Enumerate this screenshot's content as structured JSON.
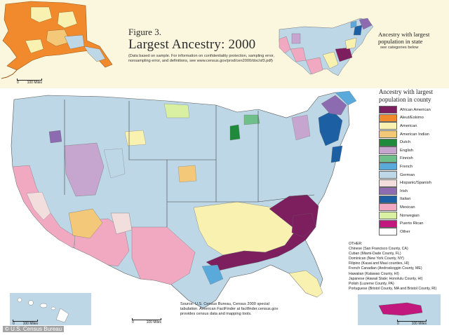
{
  "figure": {
    "label": "Figure 3.",
    "title": "Largest Ancestry: 2000",
    "note": "(Data based on sample. For information on confidentiality protection, sampling error, nonsampling error, and definitions, see www.census.gov/prod/cen2000/doc/sf3.pdf)"
  },
  "state_legend": {
    "title": "Ancestry with largest population in state",
    "subtitle": "see categories below"
  },
  "county_legend": {
    "title": "Ancestry with largest population in county",
    "items": [
      {
        "label": "African American",
        "color": "#7d1e5f"
      },
      {
        "label": "Aleut/Eskimo",
        "color": "#f08a2c"
      },
      {
        "label": "American",
        "color": "#f8f1b0"
      },
      {
        "label": "American Indian",
        "color": "#f3c878"
      },
      {
        "label": "Dutch",
        "color": "#1f8a3c"
      },
      {
        "label": "English",
        "color": "#c6a5cf"
      },
      {
        "label": "Finnish",
        "color": "#6fbf8a"
      },
      {
        "label": "French",
        "color": "#5aa9db"
      },
      {
        "label": "German",
        "color": "#bdd7e7"
      },
      {
        "label": "Hispanic/Spanish",
        "color": "#f3dede"
      },
      {
        "label": "Irish",
        "color": "#8c6bb1"
      },
      {
        "label": "Italian",
        "color": "#1d5fa3"
      },
      {
        "label": "Mexican",
        "color": "#f1a9c2"
      },
      {
        "label": "Norwegian",
        "color": "#d9f0a3"
      },
      {
        "label": "Puerto Rican",
        "color": "#c2187e"
      },
      {
        "label": "Other",
        "color": "#ffffff"
      }
    ]
  },
  "other": {
    "heading": "OTHER:",
    "lines": [
      "Chinese (San Francisco County, CA)",
      "Cuban (Miami-Dade County, FL)",
      "Dominican (New York County, NY)",
      "Filipino (Kauai and Maui counties, HI)",
      "French Canadian (Androskoggin County, ME)",
      "Hawaiian (Kalawao County, HI)",
      "Japanese (Hawaii State; Honolulu County, HI)",
      "Polish (Luzerne County, PA)",
      "Portuguese (Bristol County, MA and Bristol County, RI)"
    ]
  },
  "source": {
    "text": "Source: U.S. Census Bureau, Census 2000 special tabulation. American FactFinder at factfinder.census.gov provides census data and mapping tools."
  },
  "scales": {
    "alaska": {
      "zero": "0",
      "label": "100 Miles"
    },
    "hawaii": {
      "zero": "0",
      "label": "100 Miles"
    },
    "mainland": {
      "zero": "0",
      "label": "100 Miles"
    },
    "puerto_rico": {
      "zero": "0",
      "label": "100 Miles"
    }
  },
  "credit": "© U.S. Census Bureau"
}
